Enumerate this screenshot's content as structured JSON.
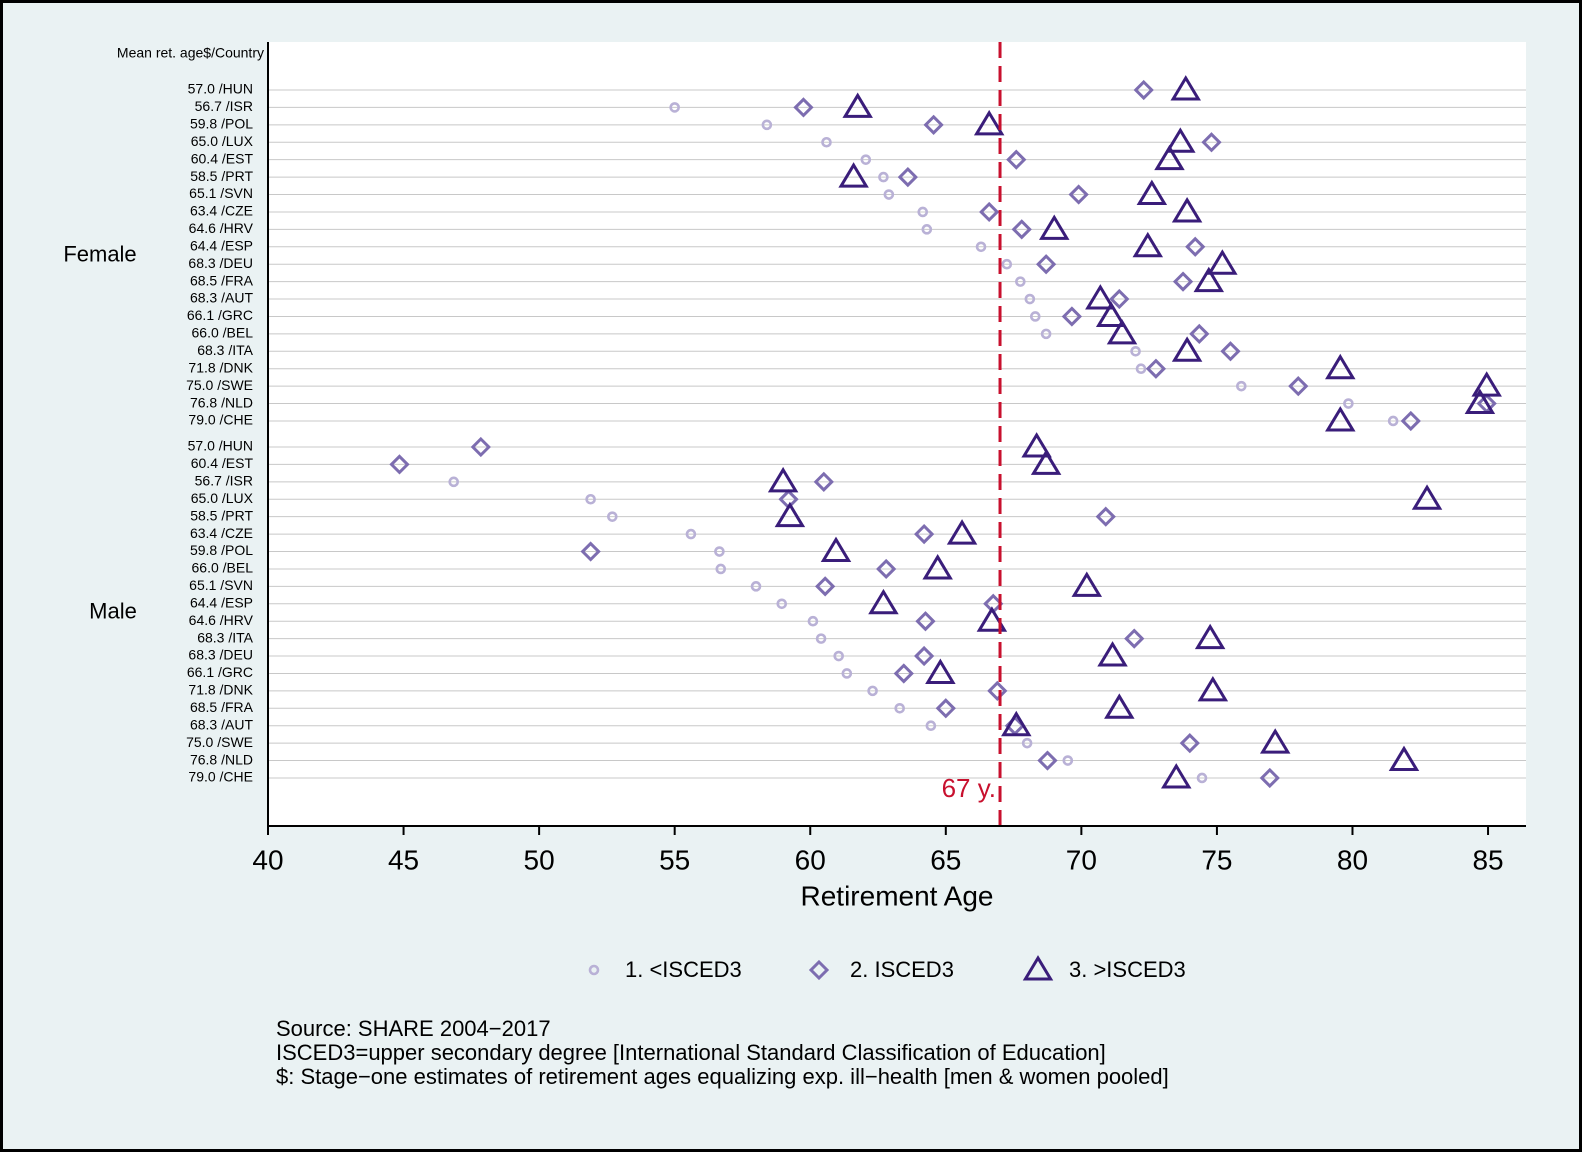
{
  "chart_data": {
    "type": "dot",
    "y_header": "Mean ret. age$/Country",
    "xlabel": "Retirement Age",
    "xlim": [
      40,
      86.4
    ],
    "xticks": [
      40,
      45,
      50,
      55,
      60,
      65,
      70,
      75,
      80,
      85
    ],
    "reference_line": {
      "value": 67,
      "label": "67 y.",
      "color": "#c8102e"
    },
    "series": [
      {
        "name": "1. <ISCED3",
        "color": "#b9b1d6",
        "marker": "circle"
      },
      {
        "name": "2. ISCED3",
        "color": "#7d6db0",
        "marker": "diamond"
      },
      {
        "name": "3. >ISCED3",
        "color": "#3a1d7a",
        "marker": "triangle"
      }
    ],
    "groups": [
      {
        "name": "Female",
        "categories": [
          "57.0 /HUN",
          "56.7 /ISR",
          "59.8 /POL",
          "65.0 /LUX",
          "60.4 /EST",
          "58.5 /PRT",
          "65.1 /SVN",
          "63.4 /CZE",
          "64.6 /HRV",
          "64.4 /ESP",
          "68.3 /DEU",
          "68.5 /FRA",
          "68.3 /AUT",
          "66.1 /GRC",
          "66.0 /BEL",
          "68.3 /ITA",
          "71.8 /DNK",
          "75.0 /SWE",
          "76.8 /NLD",
          "79.0 /CHE"
        ],
        "series_values": [
          [
            null,
            55.0,
            58.4,
            60.6,
            62.05,
            62.7,
            62.9,
            64.15,
            64.3,
            66.3,
            67.25,
            67.75,
            68.1,
            68.3,
            68.7,
            72.0,
            72.2,
            75.9,
            79.85,
            81.5
          ],
          [
            72.3,
            59.75,
            64.55,
            74.8,
            67.6,
            63.6,
            69.9,
            66.6,
            67.8,
            74.2,
            68.7,
            73.75,
            71.4,
            69.65,
            74.35,
            75.5,
            72.75,
            78.0,
            84.95,
            82.15
          ],
          [
            73.85,
            61.75,
            66.6,
            73.65,
            73.25,
            61.6,
            72.6,
            73.9,
            69.0,
            72.45,
            75.2,
            74.7,
            70.7,
            71.1,
            71.5,
            73.9,
            79.55,
            84.95,
            84.7,
            79.55
          ]
        ]
      },
      {
        "name": "Male",
        "categories": [
          "57.0 /HUN",
          "60.4 /EST",
          "56.7 /ISR",
          "65.0 /LUX",
          "58.5 /PRT",
          "63.4 /CZE",
          "59.8 /POL",
          "66.0 /BEL",
          "65.1 /SVN",
          "64.4 /ESP",
          "64.6 /HRV",
          "68.3 /ITA",
          "68.3 /DEU",
          "66.1 /GRC",
          "71.8 /DNK",
          "68.5 /FRA",
          "68.3 /AUT",
          "75.0 /SWE",
          "76.8 /NLD",
          "79.0 /CHE"
        ],
        "series_values": [
          [
            null,
            null,
            46.85,
            51.9,
            52.7,
            55.6,
            56.65,
            56.7,
            58.0,
            58.95,
            60.1,
            60.4,
            61.05,
            61.35,
            62.3,
            63.3,
            64.45,
            68.0,
            69.5,
            74.45
          ],
          [
            47.85,
            44.85,
            60.5,
            59.2,
            70.9,
            64.2,
            51.9,
            62.8,
            60.55,
            66.75,
            64.25,
            71.95,
            64.2,
            63.45,
            66.9,
            65.0,
            67.55,
            74.0,
            68.75,
            76.95
          ],
          [
            68.35,
            68.7,
            59.0,
            82.75,
            59.25,
            65.6,
            60.95,
            64.7,
            70.2,
            62.7,
            66.7,
            74.75,
            71.15,
            64.8,
            74.85,
            71.4,
            67.6,
            77.15,
            81.9,
            73.5
          ]
        ]
      }
    ],
    "notes": [
      "Source: SHARE 2004−2017",
      "ISCED3=upper secondary degree [International Standard Classification of Education]",
      "$: Stage−one estimates of retirement ages  equalizing exp. ill−health [men & women pooled]"
    ]
  }
}
